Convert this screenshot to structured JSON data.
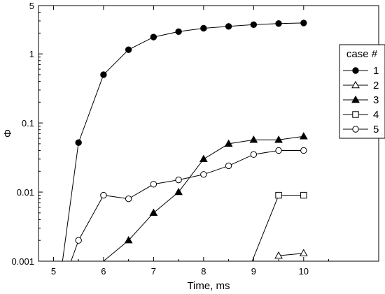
{
  "chart_data": {
    "type": "line",
    "xlabel": "Time, ms",
    "ylabel": "Φ",
    "xlim": [
      4.7,
      11.5
    ],
    "ylim": [
      0.001,
      5
    ],
    "yscale": "log",
    "grid": false,
    "x_ticks": [
      5,
      6,
      7,
      8,
      9,
      10
    ],
    "x_tick_labels": [
      "5",
      "6",
      "7",
      "8",
      "9",
      "10"
    ],
    "y_ticks": [
      0.001,
      0.01,
      0.1,
      1,
      5
    ],
    "y_tick_labels": [
      "0.001",
      "0.01",
      "0.1",
      "1",
      "5"
    ],
    "legend": {
      "title": "case #",
      "position": "right"
    },
    "series": [
      {
        "name": "1",
        "marker": "filled-circle",
        "x": [
          5.18,
          5.5,
          6.0,
          6.5,
          7.0,
          7.5,
          8.0,
          8.5,
          9.0,
          9.5,
          10.0
        ],
        "y": [
          0.001,
          0.052,
          0.5,
          1.15,
          1.75,
          2.1,
          2.35,
          2.5,
          2.65,
          2.75,
          2.8
        ]
      },
      {
        "name": "2",
        "marker": "open-triangle",
        "x": [
          9.5,
          10.0
        ],
        "y": [
          0.0012,
          0.0013
        ]
      },
      {
        "name": "3",
        "marker": "filled-triangle",
        "x": [
          6.0,
          6.5,
          7.0,
          7.5,
          8.0,
          8.5,
          9.0,
          9.5,
          10.0
        ],
        "y": [
          0.001,
          0.002,
          0.005,
          0.01,
          0.03,
          0.05,
          0.057,
          0.057,
          0.064
        ]
      },
      {
        "name": "4",
        "marker": "open-square",
        "x": [
          8.97,
          9.5,
          10.0
        ],
        "y": [
          0.001,
          0.009,
          0.009
        ]
      },
      {
        "name": "5",
        "marker": "open-circle",
        "x": [
          5.35,
          5.5,
          6.0,
          6.5,
          7.0,
          7.5,
          8.0,
          8.5,
          9.0,
          9.5,
          10.0
        ],
        "y": [
          0.001,
          0.002,
          0.009,
          0.008,
          0.013,
          0.015,
          0.018,
          0.024,
          0.035,
          0.04,
          0.04
        ]
      }
    ]
  }
}
